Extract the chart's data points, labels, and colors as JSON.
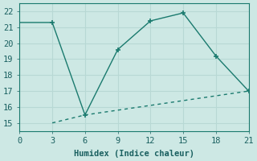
{
  "line1_x": [
    0,
    3,
    6,
    9,
    12,
    15,
    18,
    21
  ],
  "line1_y": [
    21.3,
    21.3,
    15.5,
    19.6,
    21.4,
    21.9,
    19.2,
    17.0
  ],
  "line2_x": [
    3,
    6,
    21
  ],
  "line2_y": [
    15.0,
    15.5,
    17.0
  ],
  "line1_markers_x": [
    3,
    6,
    9,
    12,
    15,
    18,
    21
  ],
  "line1_markers_y": [
    21.3,
    15.5,
    19.6,
    21.4,
    21.9,
    19.2,
    17.0
  ],
  "line_color": "#1a7a6e",
  "bg_color": "#cde8e4",
  "grid_color": "#b8d8d4",
  "xlabel": "Humidex (Indice chaleur)",
  "xlim": [
    0,
    21
  ],
  "ylim": [
    14.5,
    22.5
  ],
  "xticks": [
    0,
    3,
    6,
    9,
    12,
    15,
    18,
    21
  ],
  "yticks": [
    15,
    16,
    17,
    18,
    19,
    20,
    21,
    22
  ],
  "font_color": "#1a6060",
  "font_size": 7.5,
  "marker": "+",
  "marker_size": 5
}
